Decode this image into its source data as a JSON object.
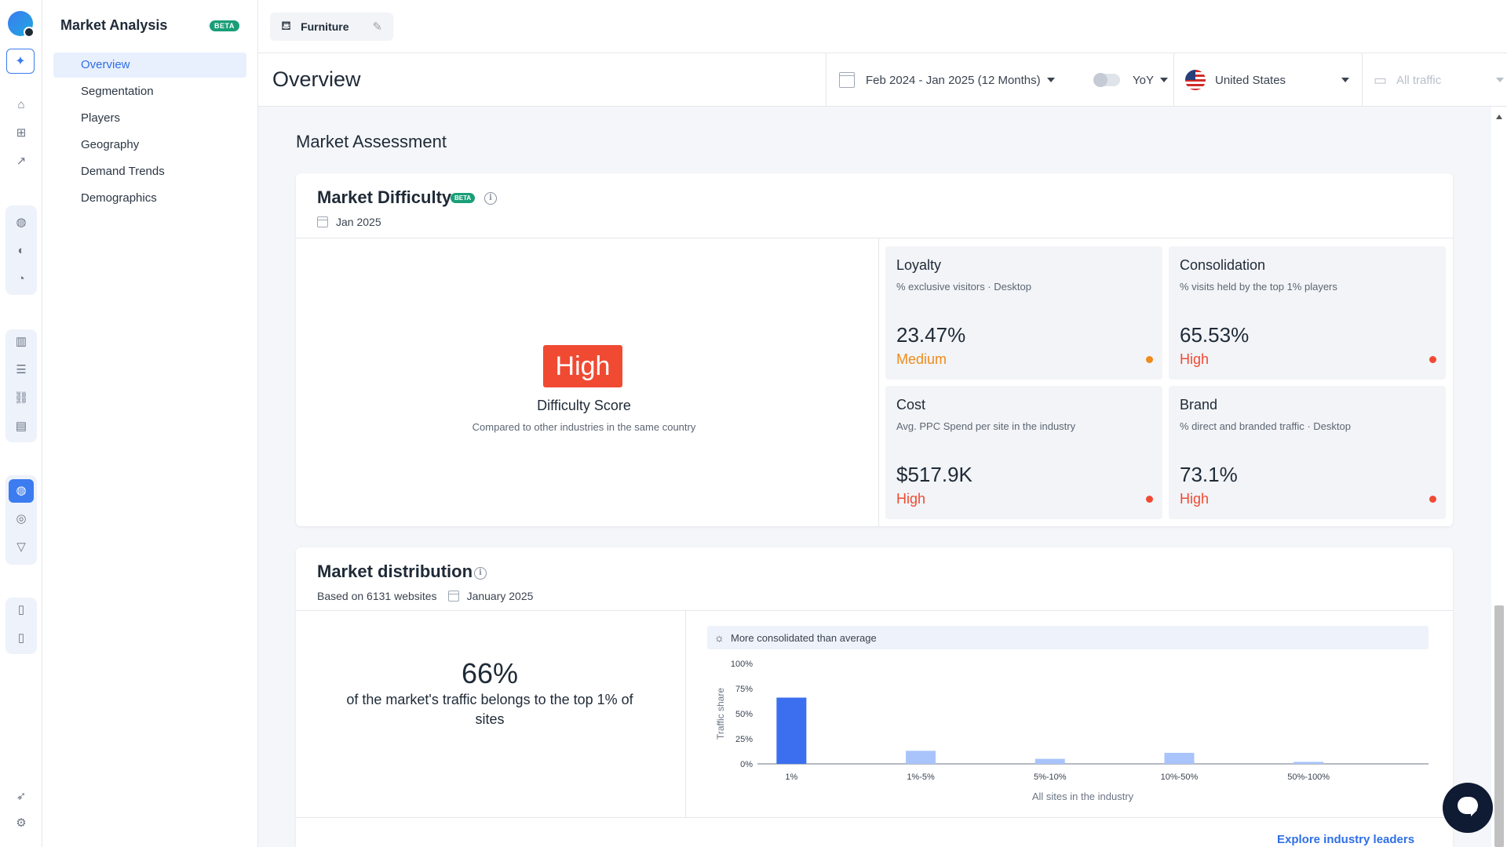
{
  "nav": {
    "title": "Market Analysis",
    "badge": "BETA",
    "items": [
      {
        "label": "Overview",
        "active": true
      },
      {
        "label": "Segmentation"
      },
      {
        "label": "Players"
      },
      {
        "label": "Geography"
      },
      {
        "label": "Demand Trends"
      },
      {
        "label": "Demographics"
      }
    ]
  },
  "topbar": {
    "industry": "Furniture"
  },
  "subbar": {
    "title": "Overview",
    "date_range": "Feb 2024 - Jan 2025 (12 Months)",
    "compare": "YoY",
    "country": "United States",
    "traffic": "All traffic"
  },
  "assessment": {
    "title": "Market Assessment",
    "difficulty": {
      "title": "Market Difficulty",
      "badge": "BETA",
      "date": "Jan 2025",
      "score": "High",
      "score_label": "Difficulty Score",
      "score_sub": "Compared to other industries in the same country",
      "metrics": [
        {
          "title": "Loyalty",
          "sub": "% exclusive visitors · Desktop",
          "value": "23.47%",
          "level": "Medium",
          "color": "#f08a1a"
        },
        {
          "title": "Consolidation",
          "sub": "% visits held by the top 1% players",
          "value": "65.53%",
          "level": "High",
          "color": "#f04a33"
        },
        {
          "title": "Cost",
          "sub": "Avg. PPC Spend per site in the industry",
          "value": "$517.9K",
          "level": "High",
          "color": "#f04a33"
        },
        {
          "title": "Brand",
          "sub": "% direct and branded traffic · Desktop",
          "value": "73.1%",
          "level": "High",
          "color": "#f04a33"
        }
      ]
    }
  },
  "distribution": {
    "title": "Market distribution",
    "based_on": "Based on 6131 websites",
    "date": "January 2025",
    "big_pct": "66%",
    "desc": "of the market's traffic belongs to the top 1% of sites",
    "insight": "More consolidated than average",
    "explore": "Explore industry leaders"
  },
  "chart_data": {
    "type": "bar",
    "categories": [
      "1%",
      "1%-5%",
      "5%-10%",
      "10%-50%",
      "50%-100%"
    ],
    "values": [
      66,
      13,
      5,
      11,
      2
    ],
    "ylabel": "Traffic share",
    "xlabel": "All sites in the industry",
    "yticks": [
      "0%",
      "25%",
      "50%",
      "75%",
      "100%"
    ],
    "ylim": [
      0,
      100
    ],
    "highlight_color": "#3b6ff0",
    "muted_color": "#a9c4fb"
  }
}
